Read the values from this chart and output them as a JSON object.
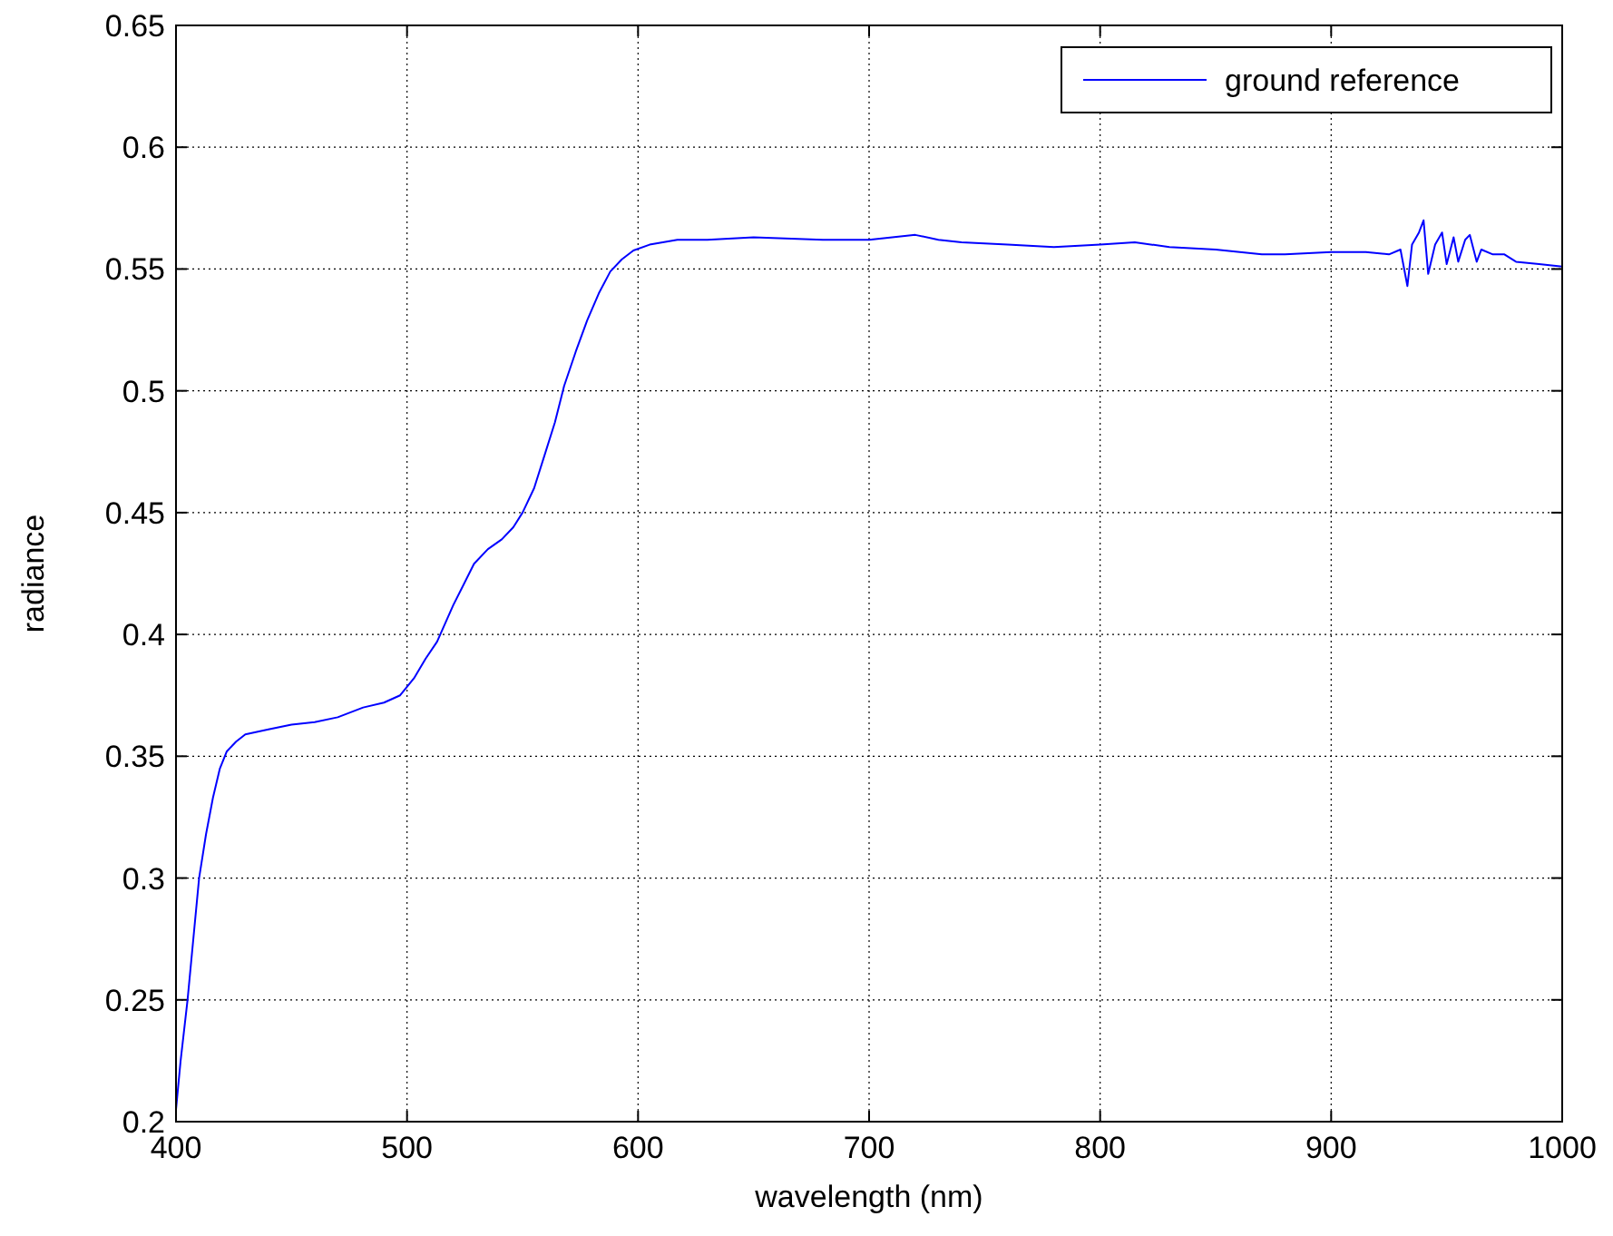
{
  "chart_data": {
    "type": "line",
    "xlabel": "wavelength (nm)",
    "ylabel": "radiance",
    "xlim": [
      400,
      1000
    ],
    "xticks": [
      400,
      500,
      600,
      700,
      800,
      900,
      1000
    ],
    "ylim": [
      0.2,
      0.65
    ],
    "yticks": [
      0.2,
      0.25,
      0.3,
      0.35,
      0.4,
      0.45,
      0.5,
      0.55,
      0.6,
      0.65
    ],
    "grid": true,
    "legend": "top right",
    "line_style": "solid",
    "series": [
      {
        "name": "ground reference",
        "color": "#0000ff",
        "x": [
          400,
          402,
          405,
          408,
          410,
          413,
          416,
          419,
          422,
          426,
          430,
          440,
          450,
          460,
          470,
          481,
          490,
          497,
          503,
          508,
          513,
          520,
          529,
          535,
          541,
          546,
          550,
          555,
          559,
          564,
          568,
          573,
          578,
          583,
          588,
          593,
          598,
          605,
          617,
          630,
          650,
          680,
          700,
          710,
          720,
          730,
          740,
          760,
          780,
          800,
          815,
          830,
          850,
          870,
          880,
          900,
          915,
          925,
          930,
          933,
          935,
          938,
          940,
          942,
          945,
          948,
          950,
          953,
          955,
          958,
          960,
          963,
          965,
          970,
          975,
          980,
          990,
          1000
        ],
        "values": [
          0.205,
          0.225,
          0.25,
          0.28,
          0.3,
          0.318,
          0.333,
          0.345,
          0.352,
          0.356,
          0.359,
          0.361,
          0.363,
          0.364,
          0.366,
          0.37,
          0.372,
          0.375,
          0.382,
          0.39,
          0.397,
          0.412,
          0.429,
          0.435,
          0.439,
          0.444,
          0.45,
          0.46,
          0.472,
          0.487,
          0.502,
          0.516,
          0.529,
          0.54,
          0.549,
          0.554,
          0.5576,
          0.56,
          0.562,
          0.562,
          0.563,
          0.562,
          0.562,
          0.563,
          0.564,
          0.562,
          0.561,
          0.56,
          0.559,
          0.56,
          0.561,
          0.559,
          0.558,
          0.556,
          0.556,
          0.557,
          0.557,
          0.556,
          0.558,
          0.543,
          0.56,
          0.565,
          0.57,
          0.548,
          0.56,
          0.565,
          0.552,
          0.563,
          0.553,
          0.562,
          0.564,
          0.553,
          0.558,
          0.556,
          0.556,
          0.553,
          0.552,
          0.551
        ]
      }
    ]
  }
}
